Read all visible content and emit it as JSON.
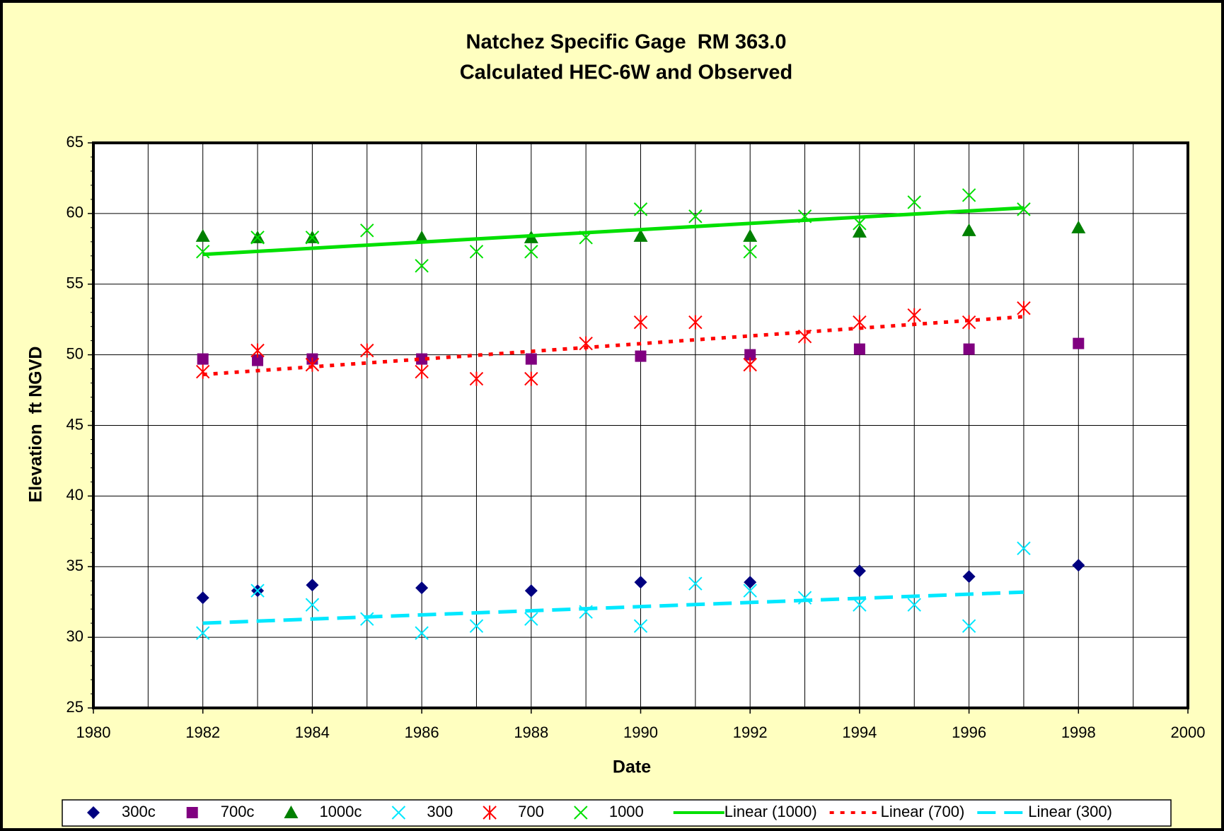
{
  "chart_data": {
    "type": "scatter",
    "title": "Natchez Specific Gage  RM 363.0",
    "subtitle": "Calculated HEC-6W and Observed",
    "x_label": "Date",
    "y_label": "Elevation  ft NGVD",
    "xlim": [
      1980,
      2000
    ],
    "xticks": [
      1980,
      1982,
      1984,
      1986,
      1988,
      1990,
      1992,
      1994,
      1996,
      1998,
      2000
    ],
    "ylim": [
      25,
      65
    ],
    "yticks": [
      25,
      30,
      35,
      40,
      45,
      50,
      55,
      60,
      65
    ],
    "grid": true,
    "minor_x_grid": true,
    "legend": "bottom",
    "series": [
      {
        "name": "300c",
        "color": "#000080",
        "marker": "diamond",
        "x": [
          1982,
          1983,
          1984,
          1986,
          1988,
          1990,
          1992,
          1994,
          1996,
          1998
        ],
        "values": [
          32.8,
          33.3,
          33.7,
          33.5,
          33.3,
          33.9,
          33.9,
          34.7,
          34.3,
          35.1
        ]
      },
      {
        "name": "700c",
        "color": "#800080",
        "marker": "square",
        "x": [
          1982,
          1983,
          1984,
          1986,
          1988,
          1990,
          1992,
          1994,
          1996,
          1998
        ],
        "values": [
          49.7,
          49.6,
          49.7,
          49.7,
          49.7,
          49.9,
          50.0,
          50.4,
          50.4,
          50.8
        ]
      },
      {
        "name": "1000c",
        "color": "#008000",
        "marker": "triangle",
        "x": [
          1982,
          1983,
          1984,
          1986,
          1988,
          1990,
          1992,
          1994,
          1996,
          1998
        ],
        "values": [
          58.4,
          58.3,
          58.3,
          58.3,
          58.3,
          58.4,
          58.4,
          58.7,
          58.8,
          59.0
        ]
      },
      {
        "name": "300",
        "color": "#00e8ff",
        "marker": "x",
        "x": [
          1982,
          1983,
          1984,
          1985,
          1986,
          1987,
          1988,
          1989,
          1990,
          1991,
          1992,
          1993,
          1994,
          1995,
          1996,
          1997
        ],
        "values": [
          30.3,
          33.3,
          32.3,
          31.3,
          30.3,
          30.8,
          31.3,
          31.8,
          30.8,
          33.8,
          33.3,
          32.8,
          32.3,
          32.3,
          30.8,
          36.3
        ]
      },
      {
        "name": "700",
        "color": "#ff0000",
        "marker": "asterisk",
        "x": [
          1982,
          1983,
          1984,
          1985,
          1986,
          1987,
          1988,
          1989,
          1990,
          1991,
          1992,
          1993,
          1994,
          1995,
          1996,
          1997
        ],
        "values": [
          48.8,
          50.3,
          49.3,
          50.3,
          48.8,
          48.3,
          48.3,
          50.8,
          52.3,
          52.3,
          49.3,
          51.3,
          52.3,
          52.8,
          52.3,
          53.3
        ]
      },
      {
        "name": "1000",
        "color": "#00e000",
        "marker": "x",
        "x": [
          1982,
          1983,
          1984,
          1985,
          1986,
          1987,
          1988,
          1989,
          1990,
          1991,
          1992,
          1993,
          1994,
          1995,
          1996,
          1997
        ],
        "values": [
          57.3,
          58.3,
          58.3,
          58.8,
          56.3,
          57.3,
          57.3,
          58.3,
          60.3,
          59.8,
          57.3,
          59.8,
          59.3,
          60.8,
          61.3,
          60.3
        ]
      },
      {
        "name": "Linear (1000)",
        "color": "#00e000",
        "line": "solid",
        "x": [
          1982,
          1997
        ],
        "values": [
          57.1,
          60.4
        ]
      },
      {
        "name": "Linear (700)",
        "color": "#ff0000",
        "line": "dotted",
        "x": [
          1982,
          1997
        ],
        "values": [
          48.6,
          52.7
        ]
      },
      {
        "name": "Linear (300)",
        "color": "#00e8ff",
        "line": "dashed",
        "x": [
          1982,
          1997
        ],
        "values": [
          31.0,
          33.2
        ]
      }
    ]
  }
}
